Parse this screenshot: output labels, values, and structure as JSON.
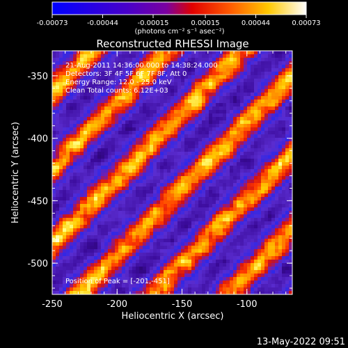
{
  "app": {
    "footer_timestamp": "13-May-2022 09:51"
  },
  "colorbar": {
    "tick_labels": [
      "-0.00073",
      "-0.00044",
      "-0.00015",
      "0.00015",
      "0.00044",
      "0.00073"
    ],
    "range": [
      -0.00073,
      0.00073
    ],
    "unit_label": "(photons cm⁻² s⁻¹ asec⁻²)",
    "colors": [
      "#0000ff",
      "#6a00ff",
      "#ff0000",
      "#ff7a00",
      "#ffd400",
      "#ffffff"
    ]
  },
  "chart_data": {
    "type": "heatmap",
    "title": "Reconstructed RHESSI Image",
    "xlabel": "Heliocentric X (arcsec)",
    "ylabel": "Heliocentric Y (arcsec)",
    "xlim": [
      -250,
      -65
    ],
    "ylim": [
      -525,
      -330
    ],
    "xticks": [
      -250,
      -200,
      -150,
      -100
    ],
    "yticks": [
      -350,
      -400,
      -450,
      -500
    ],
    "xtick_labels": [
      "-250",
      "-200",
      "-150",
      "-100"
    ],
    "ytick_labels": [
      "-350",
      "-400",
      "-450",
      "-500"
    ],
    "annotations": [
      "21-Aug-2011 14:36:00.000 to 14:38:24.000",
      "Detectors: 3F 4F 5F 6F 7F 8F, Att 0",
      "Energy Range: 12.0 - 25.0 keV",
      "Clean     Total counts: 6.12E+03"
    ],
    "peak_label": "Position of Peak = [-201,-451]",
    "peak": [
      -201,
      -451
    ],
    "colormap_stops": [
      "#000000",
      "#1a0044",
      "#3a0a9a",
      "#5a2ccf",
      "#2e28e8",
      "#7a1fa8",
      "#d01010",
      "#ff3a00",
      "#ff8c00",
      "#ffcc00",
      "#ffff80",
      "#ffffff"
    ]
  }
}
